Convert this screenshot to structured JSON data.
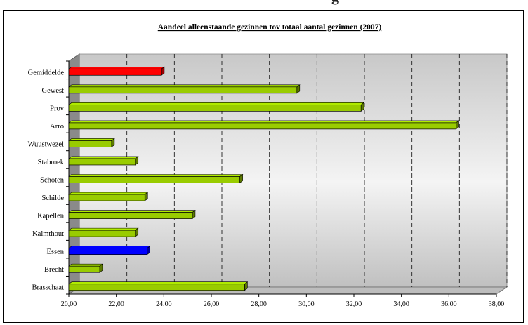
{
  "chart_data": {
    "type": "bar",
    "orientation": "horizontal",
    "title": "Aandeel alleenstaande gezinnen tov totaal aantal gezinnen (2007)",
    "categories": [
      "Gemiddelde",
      "Gewest",
      "Prov",
      "Arro",
      "Wuustwezel",
      "Stabroek",
      "Schoten",
      "Schilde",
      "Kapellen",
      "Kalmthout",
      "Essen",
      "Brecht",
      "Brasschaat"
    ],
    "values": [
      23.9,
      29.6,
      32.3,
      36.3,
      21.8,
      22.8,
      27.2,
      23.2,
      25.2,
      22.8,
      23.3,
      21.3,
      27.4
    ],
    "bar_colors": [
      "#ff0000",
      "#99cc00",
      "#99cc00",
      "#99cc00",
      "#99cc00",
      "#99cc00",
      "#99cc00",
      "#99cc00",
      "#99cc00",
      "#99cc00",
      "#0000ff",
      "#99cc00",
      "#99cc00"
    ],
    "xlim": [
      20,
      38
    ],
    "x_ticks": [
      "20,00",
      "22,00",
      "24,00",
      "26,00",
      "28,00",
      "30,00",
      "32,00",
      "34,00",
      "36,00",
      "38,00"
    ],
    "grid": "vertical dashed",
    "legend": "none",
    "style": "3d"
  }
}
